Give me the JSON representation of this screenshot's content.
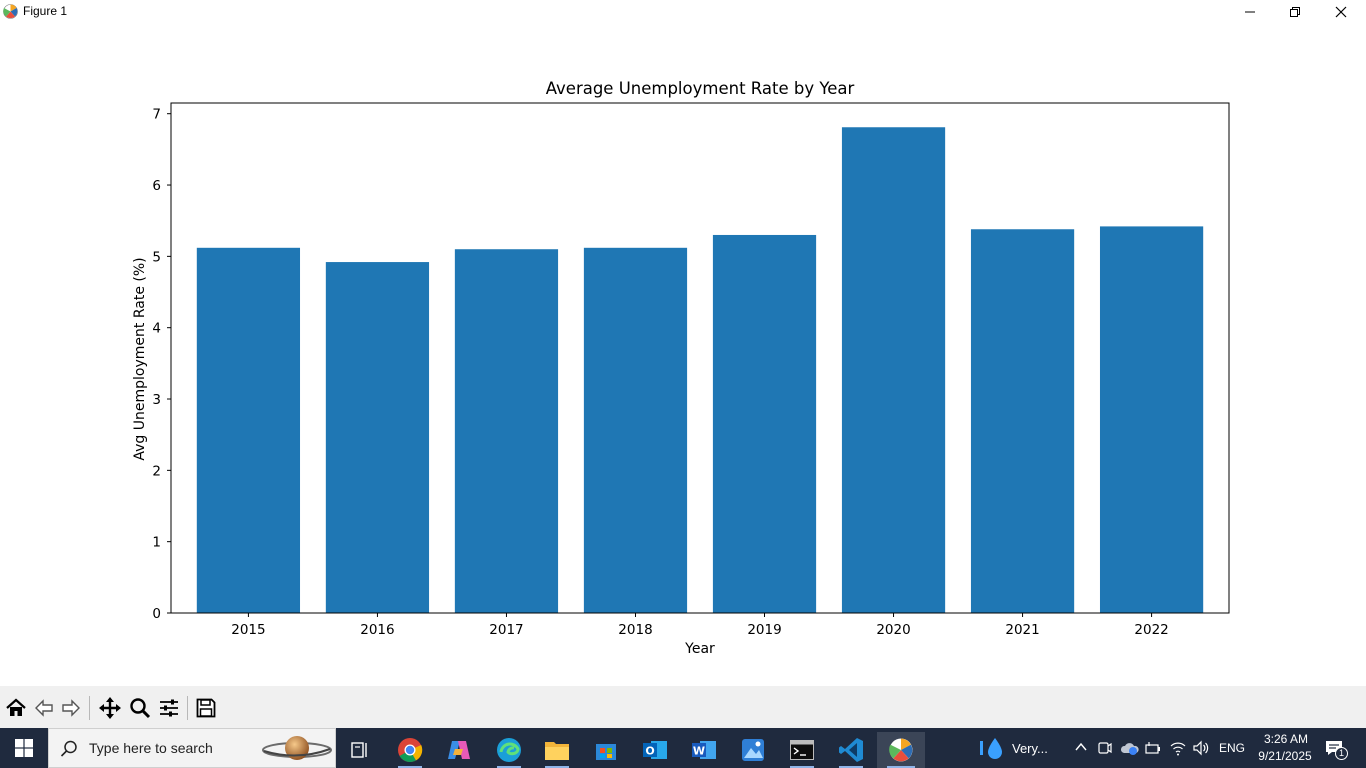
{
  "window": {
    "title": "Figure 1",
    "icon": "matplotlib-icon",
    "controls": [
      "minimize-icon",
      "maximize-icon",
      "close-icon"
    ]
  },
  "chart_data": {
    "type": "bar",
    "title": "Average Unemployment Rate by Year",
    "xlabel": "Year",
    "ylabel": "Avg Unemployment Rate (%)",
    "categories": [
      "2015",
      "2016",
      "2017",
      "2018",
      "2019",
      "2020",
      "2021",
      "2022"
    ],
    "values": [
      5.12,
      4.92,
      5.1,
      5.12,
      5.3,
      6.81,
      5.38,
      5.42
    ],
    "ylim": [
      0,
      7.15
    ],
    "yticks": [
      0,
      1,
      2,
      3,
      4,
      5,
      6,
      7
    ],
    "bar_color": "#1f77b4",
    "grid": false
  },
  "toolbar": {
    "tools": [
      "home-icon",
      "back-icon",
      "forward-icon",
      "pan-icon",
      "zoom-icon",
      "configure-subplots-icon",
      "save-icon"
    ]
  },
  "taskbar": {
    "search_placeholder": "Type here to search",
    "apps": [
      "chrome-icon",
      "copilot-icon",
      "edge-icon",
      "file-explorer-icon",
      "microsoft-store-icon",
      "outlook-icon",
      "word-icon",
      "photos-icon",
      "terminal-icon",
      "vscode-icon",
      "matplotlib-icon"
    ],
    "weather_text": "Very...",
    "language": "ENG",
    "time": "3:26 AM",
    "date": "9/21/2025",
    "notification_count": "1",
    "accent_color": "#1f2a3e"
  }
}
